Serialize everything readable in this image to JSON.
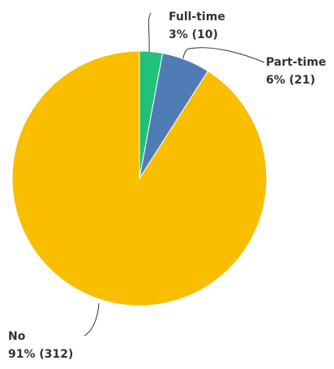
{
  "chart_data": {
    "type": "pie",
    "start_angle_deg": 0,
    "direction": "clockwise",
    "slices": [
      {
        "label": "Full-time",
        "value_text": "3% (10)",
        "percent": 3,
        "count": 10,
        "color": "#21c17a"
      },
      {
        "label": "Part-time",
        "value_text": "6% (21)",
        "percent": 6,
        "count": 21,
        "color": "#507cb6"
      },
      {
        "label": "No",
        "value_text": "91% (312)",
        "percent": 91,
        "count": 312,
        "color": "#f9be00"
      }
    ]
  }
}
